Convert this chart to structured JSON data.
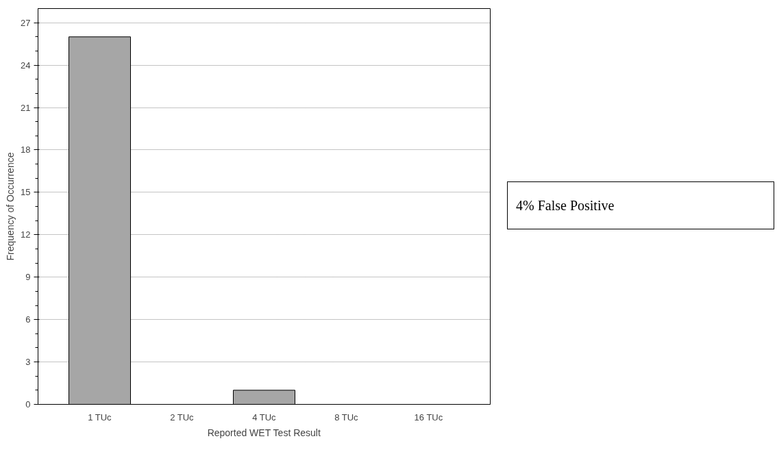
{
  "chart_data": {
    "type": "bar",
    "xlabel": "Reported WET Test Result",
    "ylabel": "Frequency of Occurrence",
    "categories": [
      "1 TUc",
      "2 TUc",
      "4 TUc",
      "8 TUc",
      "16 TUc"
    ],
    "values": [
      26,
      0,
      1,
      0,
      0
    ],
    "color": "#a6a6a6",
    "ylim": [
      0,
      28
    ],
    "yticks": [
      0,
      3,
      6,
      9,
      12,
      15,
      18,
      21,
      24,
      27
    ],
    "grid": "y",
    "annotations": [
      "4% False Positive"
    ]
  }
}
